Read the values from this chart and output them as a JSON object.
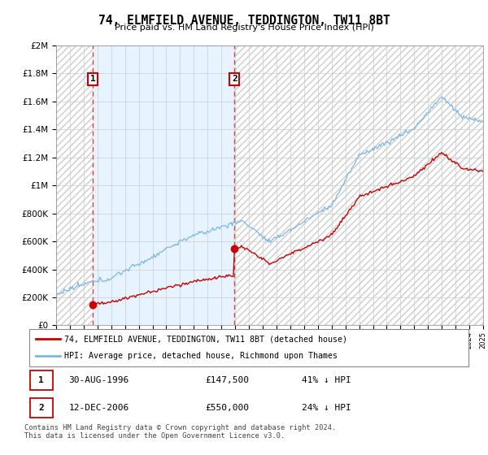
{
  "title": "74, ELMFIELD AVENUE, TEDDINGTON, TW11 8BT",
  "subtitle": "Price paid vs. HM Land Registry's House Price Index (HPI)",
  "sale1_x": 1996.66,
  "sale1_price": 147500,
  "sale2_x": 2006.95,
  "sale2_price": 550000,
  "hpi_color": "#7ab8e8",
  "price_color": "#cc0000",
  "dashed_line_color": "#dd4444",
  "shade_color": "#ddeeff",
  "legend1": "74, ELMFIELD AVENUE, TEDDINGTON, TW11 8BT (detached house)",
  "legend2": "HPI: Average price, detached house, Richmond upon Thames",
  "table_row1": [
    "1",
    "30-AUG-1996",
    "£147,500",
    "41% ↓ HPI"
  ],
  "table_row2": [
    "2",
    "12-DEC-2006",
    "£550,000",
    "24% ↓ HPI"
  ],
  "footer": "Contains HM Land Registry data © Crown copyright and database right 2024.\nThis data is licensed under the Open Government Licence v3.0.",
  "xmin": 1994,
  "xmax": 2025,
  "ymin": 0,
  "ymax": 2000000
}
